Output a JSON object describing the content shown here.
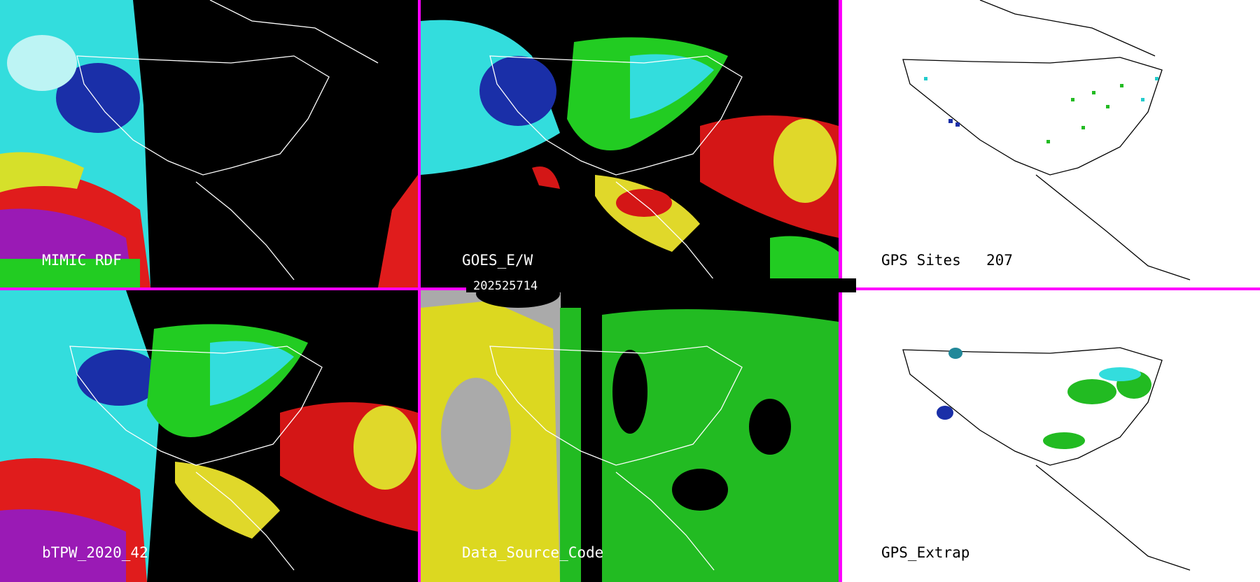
{
  "panels": [
    {
      "label": "MIMIC RDF"
    },
    {
      "label": "GOES_E/W"
    },
    {
      "label": "GPS Sites",
      "count": "207"
    },
    {
      "label": "bTPW_2020_42"
    },
    {
      "label": "Data_Source_Code"
    },
    {
      "label": "GPS_Extrap"
    }
  ],
  "timestamp": "202525714"
}
